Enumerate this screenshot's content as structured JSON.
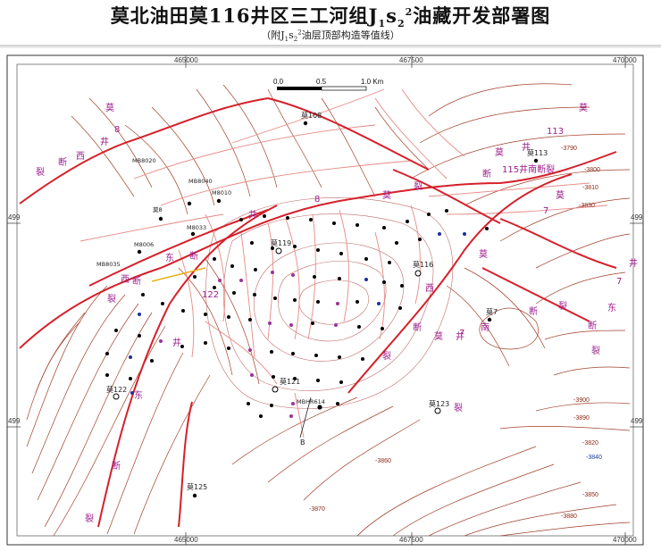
{
  "title": {
    "main": "莫北油田莫116井区三工河组J",
    "sub1": "1",
    "s": "s",
    "sub2": "2",
    "sup": "2",
    "tail": "油藏开发部署图"
  },
  "subtitle": {
    "pre": "（附J",
    "sub1": "1",
    "s": "s",
    "sub2": "2",
    "sup": "2",
    "post": "油层顶部构造等值线）"
  },
  "grid": {
    "x_top": [
      "465000",
      "467500",
      "470000"
    ],
    "x_bottom": [
      "465000",
      "467500",
      "470000"
    ],
    "y_left": [
      "499",
      "499"
    ],
    "y_right": [
      "499",
      "499"
    ]
  },
  "scale": {
    "labels": [
      "0.0",
      "0.5",
      "1.0 Km"
    ]
  },
  "faults": [
    {
      "text": "莫"
    },
    {
      "text": "8"
    },
    {
      "text": "井"
    },
    {
      "text": "断"
    },
    {
      "text": "西"
    },
    {
      "text": "裂"
    },
    {
      "text": "莫"
    },
    {
      "text": "113"
    },
    {
      "text": "井"
    },
    {
      "text": "断"
    },
    {
      "text": "莫"
    },
    {
      "text": "115井南断裂"
    },
    {
      "text": "莫"
    },
    {
      "text": "7"
    },
    {
      "text": "井"
    },
    {
      "text": "东"
    },
    {
      "text": "断"
    },
    {
      "text": "裂"
    },
    {
      "text": "8"
    },
    {
      "text": "莫"
    },
    {
      "text": "裂"
    },
    {
      "text": "东"
    },
    {
      "text": "断"
    },
    {
      "text": "裂"
    },
    {
      "text": "井"
    },
    {
      "text": "东"
    },
    {
      "text": "断"
    },
    {
      "text": "裂"
    },
    {
      "text": "7"
    },
    {
      "text": "井"
    },
    {
      "text": "南"
    },
    {
      "text": "断"
    },
    {
      "text": "裂"
    },
    {
      "text": "西"
    },
    {
      "text": "莫"
    },
    {
      "text": "断"
    },
    {
      "text": "裂"
    },
    {
      "text": "莫"
    },
    {
      "text": "7"
    },
    {
      "text": "井"
    },
    {
      "text": "西"
    },
    {
      "text": "断"
    },
    {
      "text": "裂"
    },
    {
      "text": "122"
    }
  ],
  "wells": [
    {
      "name": "莫108"
    },
    {
      "name": "MB8020"
    },
    {
      "name": "MB8040"
    },
    {
      "name": "M8010"
    },
    {
      "name": "莫8"
    },
    {
      "name": "M8033"
    },
    {
      "name": "M8006"
    },
    {
      "name": "MB8035"
    },
    {
      "name": "莫119"
    },
    {
      "name": "莫113"
    },
    {
      "name": "莫116"
    },
    {
      "name": "莫7"
    },
    {
      "name": "莫121"
    },
    {
      "name": "MBHR614"
    },
    {
      "name": "莫122"
    },
    {
      "name": "莫125"
    },
    {
      "name": "莫123"
    }
  ],
  "contour_labels": [
    {
      "text": "-3820"
    },
    {
      "text": "-3850"
    },
    {
      "text": "-3880"
    },
    {
      "text": "-3840"
    },
    {
      "text": "-3860"
    },
    {
      "text": "-3790"
    },
    {
      "text": "-3800"
    },
    {
      "text": "-3810"
    },
    {
      "text": "-3830"
    },
    {
      "text": "-3870"
    },
    {
      "text": "-3890"
    },
    {
      "text": "-3900"
    }
  ],
  "marker": {
    "label": "B"
  }
}
